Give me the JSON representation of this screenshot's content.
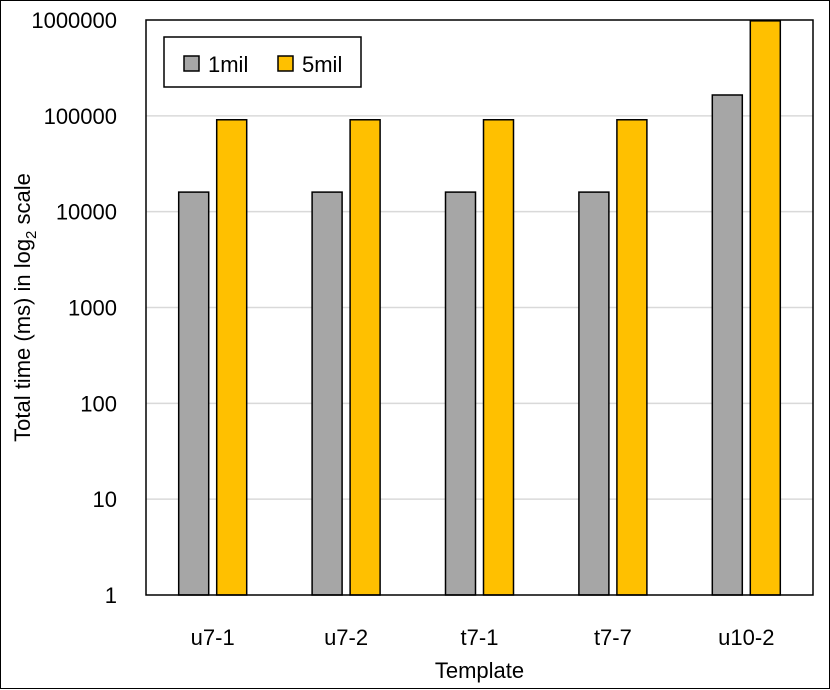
{
  "chart_data": {
    "type": "bar",
    "categories": [
      "u7-1",
      "u7-2",
      "t7-1",
      "t7-7",
      "u10-2"
    ],
    "series": [
      {
        "name": "1mil",
        "values": [
          16000,
          16000,
          16000,
          16000,
          165000
        ],
        "color": "#a6a6a6"
      },
      {
        "name": "5mil",
        "values": [
          91000,
          91000,
          91000,
          91000,
          980000
        ],
        "color": "#ffc000"
      }
    ],
    "xlabel": "Template",
    "ylabel_parts": {
      "prefix": "Total  time (ms) in log",
      "subscript": "2",
      "suffix": " scale"
    },
    "yscale": "log",
    "ylim": [
      1,
      1000000
    ],
    "yticks": [
      1,
      10,
      100,
      1000,
      10000,
      100000,
      1000000
    ],
    "ytick_labels": [
      "1",
      "10",
      "100",
      "1000",
      "10000",
      "100000",
      "1000000"
    ],
    "grid": true,
    "legend_position": "top-left"
  }
}
